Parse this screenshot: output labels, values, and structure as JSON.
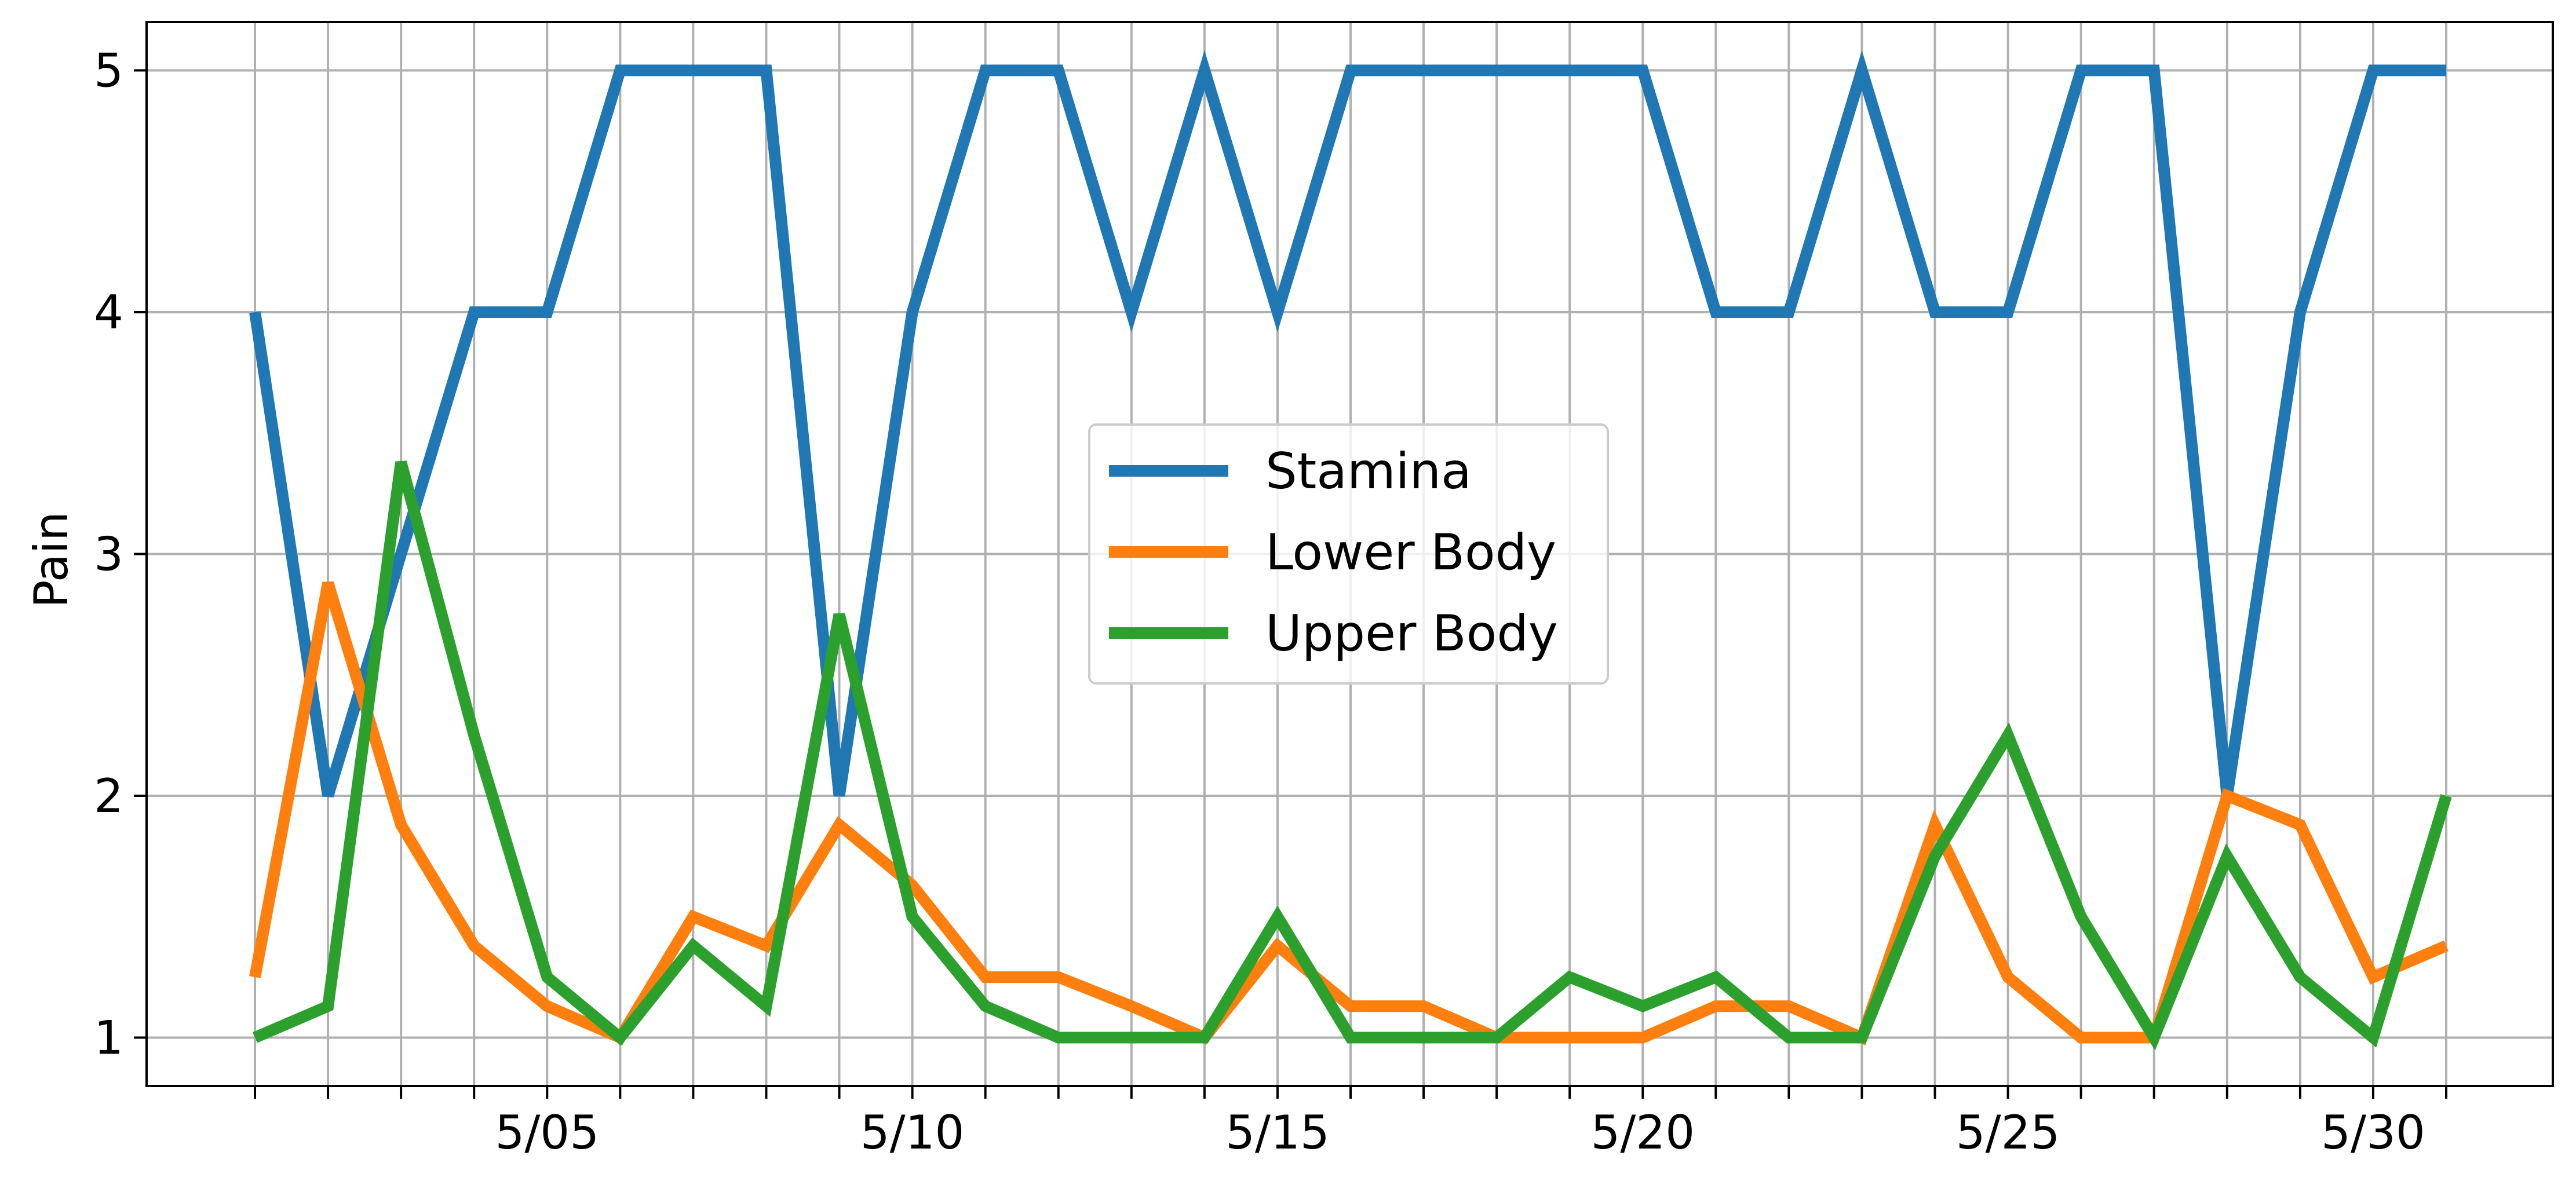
{
  "chart_data": {
    "type": "line",
    "ylabel": "Pain",
    "xlabel": "",
    "title": "",
    "x": [
      "5/01",
      "5/02",
      "5/03",
      "5/04",
      "5/05",
      "5/06",
      "5/07",
      "5/08",
      "5/09",
      "5/10",
      "5/11",
      "5/12",
      "5/13",
      "5/14",
      "5/15",
      "5/16",
      "5/17",
      "5/18",
      "5/19",
      "5/20",
      "5/21",
      "5/22",
      "5/23",
      "5/24",
      "5/25",
      "5/26",
      "5/27",
      "5/28",
      "5/29",
      "5/30",
      "5/31"
    ],
    "xtick_labels": [
      "5/05",
      "5/10",
      "5/15",
      "5/20",
      "5/25",
      "5/30"
    ],
    "ylim": [
      0.8,
      5.2
    ],
    "yticks": [
      1,
      2,
      3,
      4,
      5
    ],
    "grid": true,
    "legend_position": "center",
    "series": [
      {
        "name": "Stamina",
        "color": "#1f77b4",
        "values": [
          4,
          2,
          3,
          4,
          4,
          5,
          5,
          5,
          2,
          4,
          5,
          5,
          4,
          5,
          4,
          5,
          5,
          5,
          5,
          5,
          4,
          4,
          5,
          4,
          4,
          5,
          5,
          2,
          4,
          5,
          5
        ]
      },
      {
        "name": "Lower Body",
        "color": "#ff7f0e",
        "values": [
          1.25,
          2.88,
          1.88,
          1.38,
          1.13,
          1,
          1.5,
          1.38,
          1.88,
          1.63,
          1.25,
          1.25,
          1.13,
          1,
          1.38,
          1.13,
          1.13,
          1,
          1,
          1,
          1.13,
          1.13,
          1,
          1.88,
          1.25,
          1,
          1,
          2,
          1.88,
          1.25,
          1.38
        ]
      },
      {
        "name": "Upper Body",
        "color": "#2ca02c",
        "values": [
          1,
          1.13,
          3.38,
          2.25,
          1.25,
          1,
          1.38,
          1.13,
          2.75,
          1.5,
          1.13,
          1,
          1,
          1,
          1.5,
          1,
          1,
          1,
          1.25,
          1.13,
          1.25,
          1,
          1,
          1.75,
          2.25,
          1.5,
          1,
          1.75,
          1.25,
          1,
          2
        ]
      }
    ]
  }
}
